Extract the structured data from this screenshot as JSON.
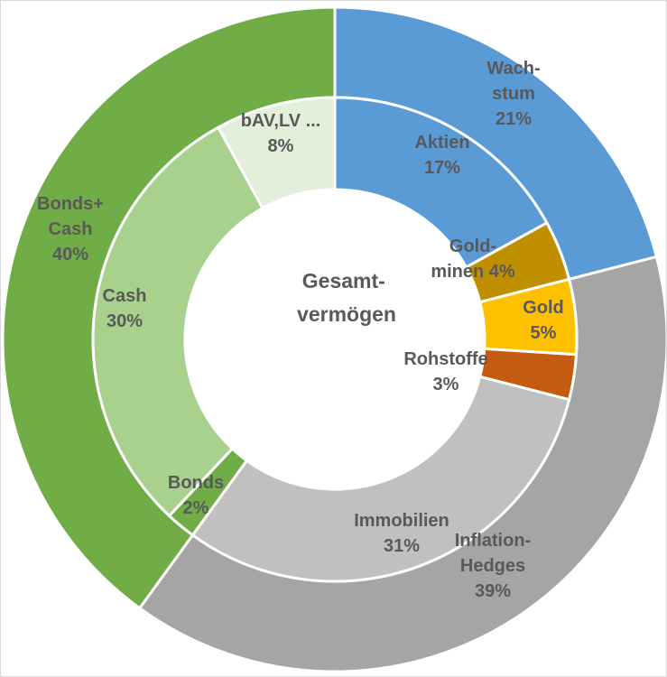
{
  "chart_data": {
    "type": "pie",
    "center_label": [
      "Gesamt-",
      "vermögen"
    ],
    "outer_ring": [
      {
        "name": "Wachstum",
        "label": [
          "Wach-",
          "stum",
          "21%"
        ],
        "value": 21,
        "color": "#5b9bd5"
      },
      {
        "name": "Inflation-Hedges",
        "label": [
          "Inflation-",
          "Hedges",
          "39%"
        ],
        "value": 39,
        "color": "#a5a5a5"
      },
      {
        "name": "Bonds+Cash",
        "label": [
          "Bonds+",
          "Cash",
          "40%"
        ],
        "value": 40,
        "color": "#70ad47"
      }
    ],
    "inner_ring": [
      {
        "name": "Aktien",
        "label": [
          "Aktien",
          "17%"
        ],
        "value": 17,
        "color": "#5b9bd5"
      },
      {
        "name": "Goldminen",
        "label": [
          "Gold-",
          "minen 4%"
        ],
        "value": 4,
        "color": "#bf8f00"
      },
      {
        "name": "Gold",
        "label": [
          "Gold",
          "5%"
        ],
        "value": 5,
        "color": "#ffc000"
      },
      {
        "name": "Rohstoffe",
        "label": [
          "Rohstoffe",
          "3%"
        ],
        "value": 3,
        "color": "#c55a11"
      },
      {
        "name": "Immobilien",
        "label": [
          "Immobilien",
          "31%"
        ],
        "value": 31,
        "color": "#c0c0c0"
      },
      {
        "name": "Bonds",
        "label": [
          "Bonds",
          "2%"
        ],
        "value": 2,
        "color": "#70ad47"
      },
      {
        "name": "Cash",
        "label": [
          "Cash",
          "30%"
        ],
        "value": 30,
        "color": "#a9d18e"
      },
      {
        "name": "bAV,LV ...",
        "label": [
          "bAV,LV ...",
          "8%"
        ],
        "value": 8,
        "color": "#e2efda"
      }
    ]
  }
}
